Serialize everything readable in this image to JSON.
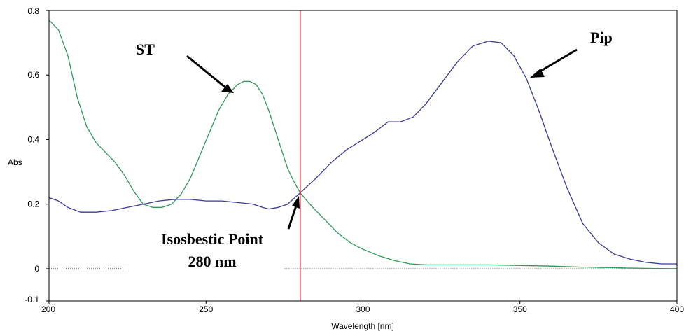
{
  "chart_data": {
    "type": "line",
    "xlabel": "Wavelength [nm]",
    "ylabel": "Abs",
    "xlim": [
      200,
      400
    ],
    "ylim": [
      -0.1,
      0.8
    ],
    "x_ticks": [
      "200",
      "250",
      "300",
      "350",
      "400"
    ],
    "y_ticks": [
      "-0.1",
      "0",
      "0.2",
      "0.4",
      "0.6",
      "0.8"
    ],
    "grid": false,
    "reference_line": {
      "x": 280,
      "color": "#e03030"
    },
    "baseline": {
      "y": 0,
      "style": "dotted",
      "segments": [
        [
          200,
          225
        ],
        [
          275,
          400
        ]
      ]
    },
    "annotations": [
      {
        "text": "ST",
        "points_to": [
          263,
          0.56
        ]
      },
      {
        "text": "Pip",
        "points_to": [
          352,
          0.59
        ]
      },
      {
        "text": "Isosbestic Point",
        "text2": "280 nm",
        "points_to": [
          280,
          0.235
        ]
      }
    ],
    "series": [
      {
        "color": "#2e9a5a",
        "x": [
          200,
          203,
          206,
          209,
          212,
          215,
          218,
          221,
          224,
          227,
          230,
          233,
          236,
          239,
          242,
          245,
          248,
          251,
          254,
          257,
          260,
          262,
          264,
          266,
          268,
          270,
          272,
          274,
          276,
          278,
          280,
          284,
          288,
          292,
          296,
          300,
          305,
          310,
          315,
          320,
          330,
          340,
          350,
          360,
          370,
          380,
          390,
          400
        ],
        "y": [
          0.77,
          0.74,
          0.66,
          0.53,
          0.44,
          0.39,
          0.36,
          0.33,
          0.29,
          0.24,
          0.2,
          0.19,
          0.19,
          0.2,
          0.23,
          0.28,
          0.35,
          0.42,
          0.49,
          0.54,
          0.57,
          0.58,
          0.58,
          0.57,
          0.54,
          0.49,
          0.43,
          0.37,
          0.31,
          0.27,
          0.235,
          0.19,
          0.15,
          0.11,
          0.08,
          0.06,
          0.04,
          0.025,
          0.015,
          0.012,
          0.012,
          0.012,
          0.01,
          0.008,
          0.005,
          0.003,
          0.001,
          0.0
        ]
      },
      {
        "color": "#3a3a9a",
        "x": [
          200,
          203,
          206,
          210,
          215,
          220,
          225,
          230,
          235,
          240,
          245,
          250,
          255,
          260,
          265,
          268,
          270,
          273,
          276,
          280,
          285,
          290,
          295,
          300,
          304,
          308,
          312,
          316,
          320,
          325,
          330,
          335,
          340,
          344,
          348,
          352,
          356,
          360,
          365,
          370,
          375,
          380,
          385,
          390,
          395,
          400
        ],
        "y": [
          0.22,
          0.21,
          0.19,
          0.175,
          0.175,
          0.18,
          0.19,
          0.2,
          0.21,
          0.215,
          0.215,
          0.21,
          0.21,
          0.205,
          0.2,
          0.19,
          0.185,
          0.19,
          0.2,
          0.235,
          0.28,
          0.33,
          0.37,
          0.4,
          0.425,
          0.455,
          0.455,
          0.47,
          0.51,
          0.575,
          0.64,
          0.69,
          0.705,
          0.7,
          0.66,
          0.59,
          0.49,
          0.38,
          0.25,
          0.14,
          0.08,
          0.045,
          0.03,
          0.02,
          0.015,
          0.015
        ]
      }
    ]
  }
}
